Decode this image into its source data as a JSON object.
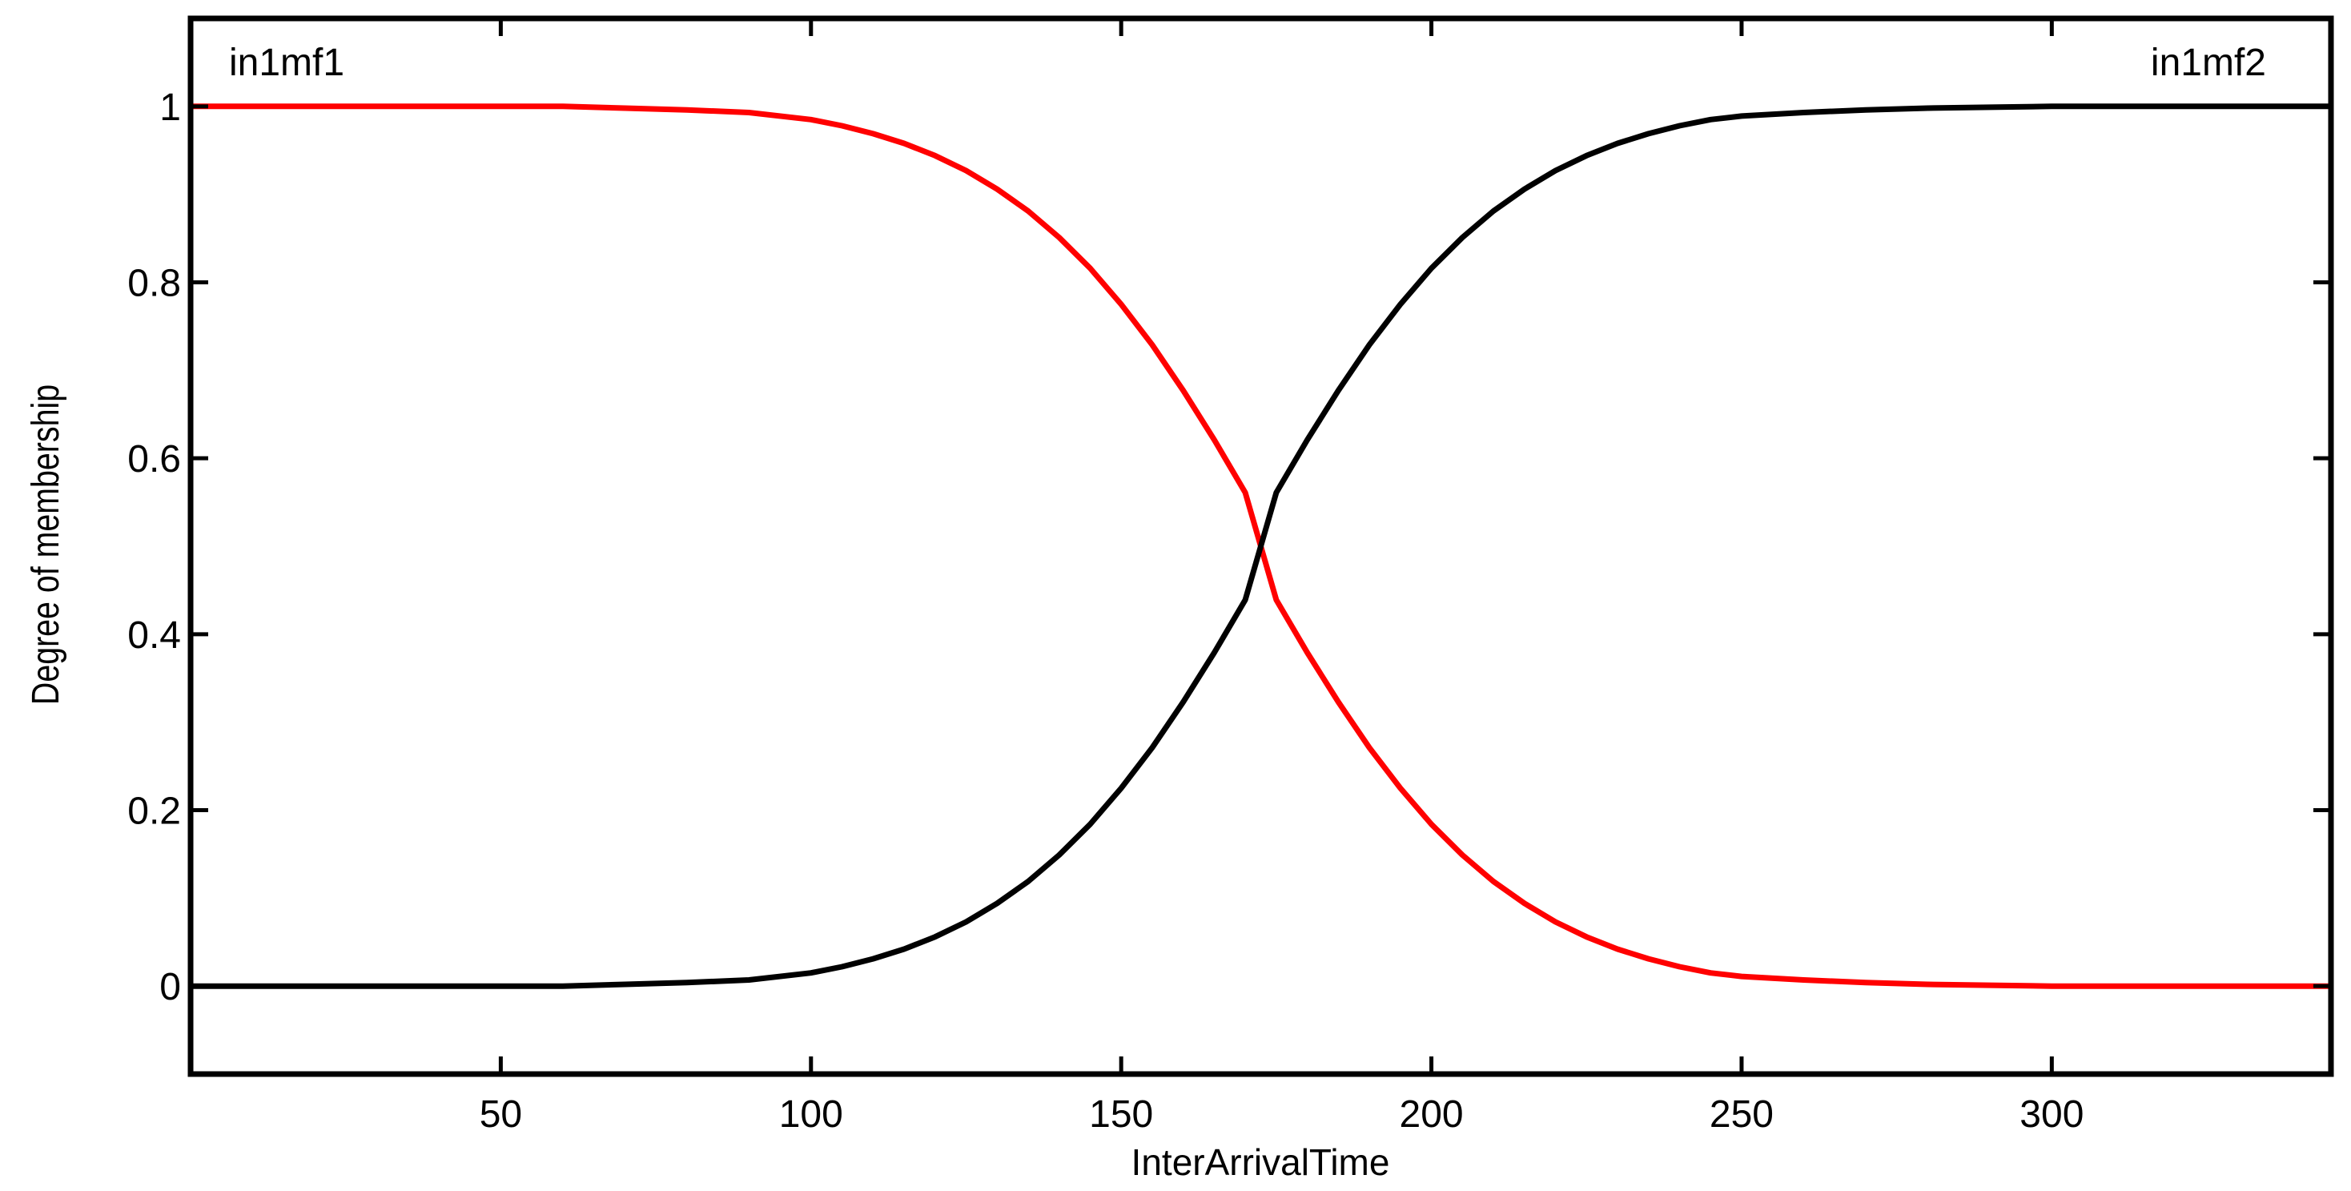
{
  "chart_data": {
    "type": "line",
    "title": "",
    "xlabel": "InterArrivalTime",
    "ylabel": "Degree of membership",
    "xlim": [
      0,
      345
    ],
    "ylim": [
      -0.1,
      1.1
    ],
    "xticks": [
      50,
      100,
      150,
      200,
      250,
      300
    ],
    "yticks": [
      0,
      0.2,
      0.4,
      0.6,
      0.8,
      1
    ],
    "ytick_labels": [
      "0",
      "0.2",
      "0.4",
      "0.6",
      "0.8",
      "1"
    ],
    "grid": false,
    "series": [
      {
        "name": "in1mf1",
        "color": "#ff0000",
        "x": [
          0,
          40,
          60,
          70,
          80,
          90,
          100,
          105,
          110,
          115,
          120,
          125,
          130,
          135,
          140,
          145,
          150,
          155,
          160,
          165,
          170,
          172.5,
          175,
          180,
          185,
          190,
          195,
          200,
          205,
          210,
          215,
          220,
          225,
          230,
          235,
          240,
          245,
          250,
          260,
          270,
          280,
          290,
          300,
          320,
          345
        ],
        "y": [
          1.0,
          1.0,
          1.0,
          0.998,
          0.996,
          0.993,
          0.985,
          0.978,
          0.969,
          0.958,
          0.944,
          0.927,
          0.906,
          0.881,
          0.851,
          0.816,
          0.775,
          0.729,
          0.677,
          0.621,
          0.561,
          0.5,
          0.439,
          0.379,
          0.323,
          0.271,
          0.225,
          0.184,
          0.149,
          0.119,
          0.094,
          0.073,
          0.056,
          0.042,
          0.031,
          0.022,
          0.015,
          0.011,
          0.007,
          0.004,
          0.002,
          0.001,
          0.0,
          0.0,
          0.0
        ]
      },
      {
        "name": "in1mf2",
        "color": "#000000",
        "x": [
          0,
          40,
          60,
          70,
          80,
          90,
          100,
          105,
          110,
          115,
          120,
          125,
          130,
          135,
          140,
          145,
          150,
          155,
          160,
          165,
          170,
          172.5,
          175,
          180,
          185,
          190,
          195,
          200,
          205,
          210,
          215,
          220,
          225,
          230,
          235,
          240,
          245,
          250,
          260,
          270,
          280,
          290,
          300,
          320,
          345
        ],
        "y": [
          0.0,
          0.0,
          0.0,
          0.002,
          0.004,
          0.007,
          0.015,
          0.022,
          0.031,
          0.042,
          0.056,
          0.073,
          0.094,
          0.119,
          0.149,
          0.184,
          0.225,
          0.271,
          0.323,
          0.379,
          0.439,
          0.5,
          0.561,
          0.621,
          0.677,
          0.729,
          0.775,
          0.816,
          0.851,
          0.881,
          0.906,
          0.927,
          0.944,
          0.958,
          0.969,
          0.978,
          0.985,
          0.989,
          0.993,
          0.996,
          0.998,
          0.999,
          1.0,
          1.0,
          1.0
        ]
      }
    ],
    "annotations": [
      {
        "text": "in1mf1",
        "position": "top-left"
      },
      {
        "text": "in1mf2",
        "position": "top-right"
      }
    ]
  }
}
